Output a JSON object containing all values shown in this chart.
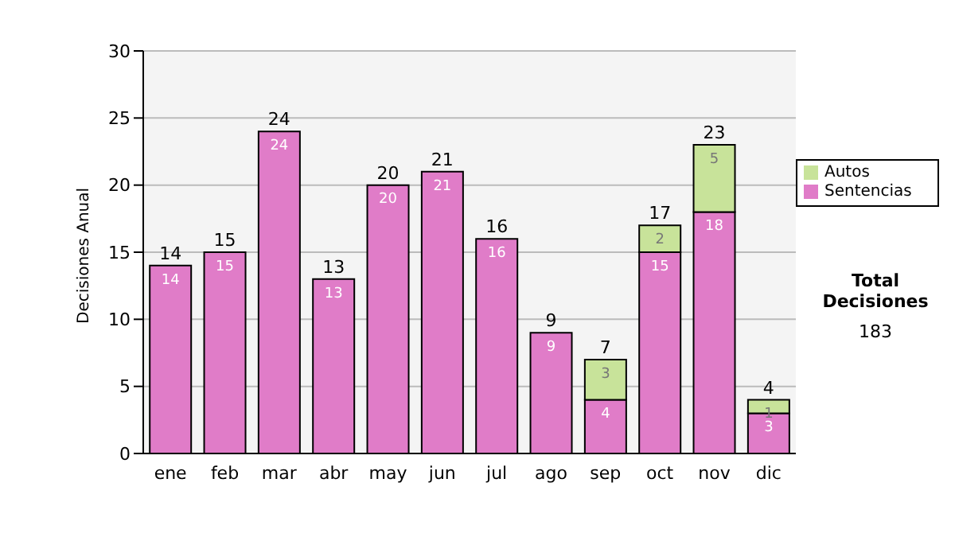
{
  "chart_data": {
    "type": "bar",
    "stacked": true,
    "ylabel": "Decisiones Anual",
    "categories": [
      "ene",
      "feb",
      "mar",
      "abr",
      "may",
      "jun",
      "jul",
      "ago",
      "sep",
      "oct",
      "nov",
      "dic"
    ],
    "series": [
      {
        "name": "Sentencias",
        "color": "#e07cc8",
        "values": [
          14,
          15,
          24,
          13,
          20,
          21,
          16,
          9,
          4,
          15,
          18,
          3
        ]
      },
      {
        "name": "Autos",
        "color": "#c8e39a",
        "values": [
          null,
          null,
          null,
          null,
          null,
          null,
          null,
          null,
          3,
          2,
          5,
          1
        ]
      }
    ],
    "totals": [
      "14",
      "15",
      "24",
      "13",
      "20",
      "21",
      "16",
      "9",
      "7",
      "17",
      "23",
      "4"
    ],
    "data_labels": true,
    "ylim": [
      0,
      30
    ],
    "yticks": [
      0,
      5,
      10,
      15,
      20,
      25,
      30
    ],
    "grid": "y",
    "legend": "right",
    "annotations": [
      "Total Decisiones",
      "183"
    ]
  }
}
